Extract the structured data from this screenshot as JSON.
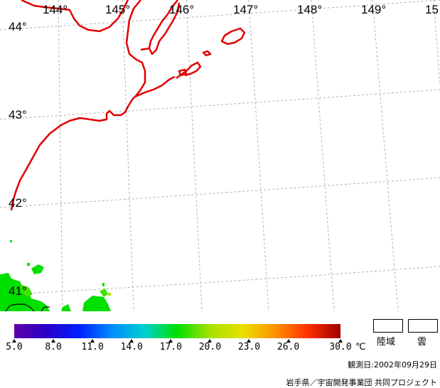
{
  "map": {
    "longitude_labels": [
      "144°",
      "145°",
      "146°",
      "147°",
      "148°",
      "149°",
      "15"
    ],
    "latitude_labels": [
      "44°",
      "43°",
      "42°",
      "41°"
    ],
    "coastline_color": "#e00000",
    "grid_color": "#b0b0b0",
    "sst_colors": [
      "#00e000",
      "#40e000",
      "#a8e000"
    ]
  },
  "colorbar": {
    "tick_labels": [
      "5.0",
      "8.0",
      "11.0",
      "14.0",
      "17.0",
      "20.0",
      "23.0",
      "26.0",
      "30.0"
    ],
    "unit": "℃",
    "min": 5.0,
    "max": 30.0
  },
  "legend": {
    "land_label": "陸域",
    "cloud_label": "雲"
  },
  "footer": {
    "observation_date": "観測日:2002年09月29日",
    "credit": "岩手県／宇宙開発事業団 共同プロジェクト"
  }
}
